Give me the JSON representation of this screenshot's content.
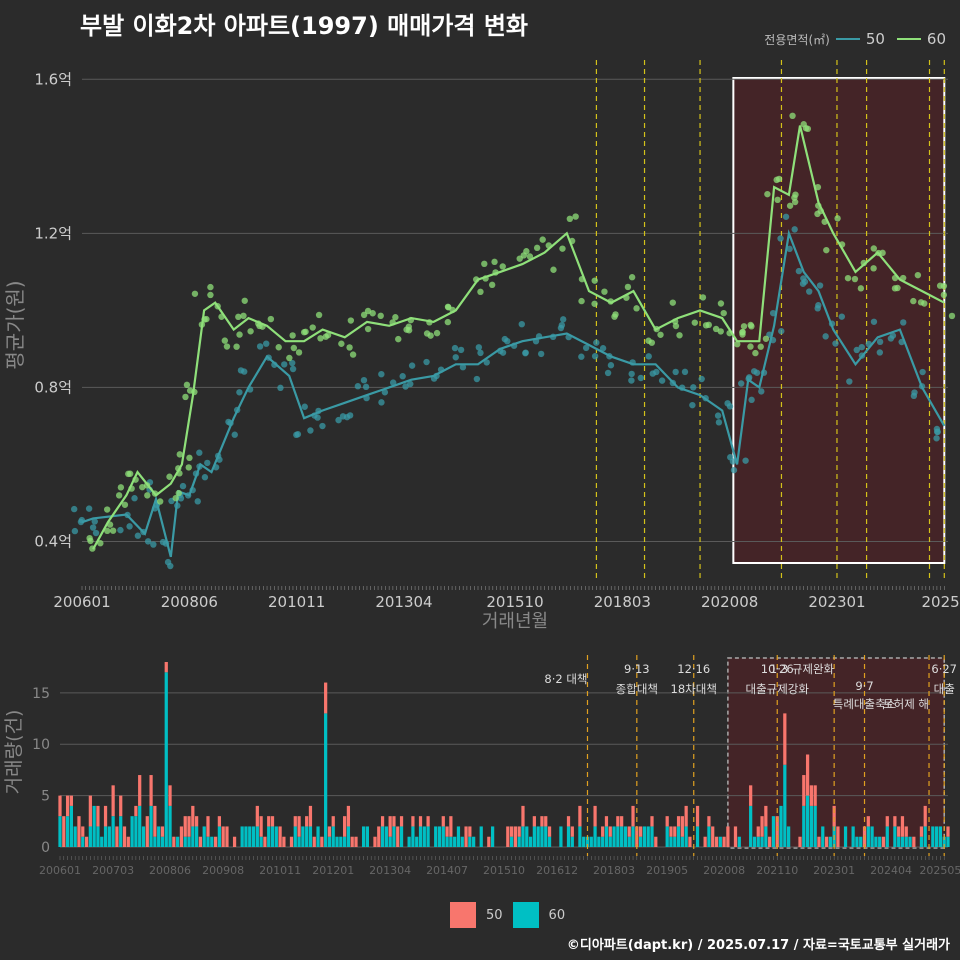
{
  "title": "부발 이화2차 아파트(1997) 매매가격 변화",
  "legend_top": {
    "title": "전용면적(㎡)",
    "items": [
      {
        "label": "50",
        "color": "#3a9aa5"
      },
      {
        "label": "60",
        "color": "#8fe07a"
      }
    ]
  },
  "legend_bottom": {
    "items": [
      {
        "label": "50",
        "color": "#f8766d"
      },
      {
        "label": "60",
        "color": "#00bfc4"
      }
    ]
  },
  "credit": "©디아파트(dapt.kr) / 2025.07.17 / 자료=국토교통부 실거래가",
  "chart_data": [
    {
      "type": "line",
      "name": "price",
      "xlabel": "거래년월",
      "ylabel": "평균가(원)",
      "x_ticks": [
        "200601",
        "200806",
        "201011",
        "201304",
        "201510",
        "201803",
        "202008",
        "202301",
        "2025"
      ],
      "y_ticks": [
        "0.4억",
        "0.8억",
        "1.2억",
        "1.6억"
      ],
      "ylim": [
        0.3,
        1.65
      ],
      "x_range": [
        "2006-01",
        "2025-07"
      ],
      "series": [
        {
          "name": "50",
          "color": "#3a9aa5",
          "points": [
            [
              "2006-01",
              0.45
            ],
            [
              "2006-04",
              0.46
            ],
            [
              "2007-01",
              0.47
            ],
            [
              "2007-06",
              0.42
            ],
            [
              "2007-09",
              0.51
            ],
            [
              "2008-01",
              0.36
            ],
            [
              "2008-03",
              0.53
            ],
            [
              "2008-06",
              0.52
            ],
            [
              "2008-09",
              0.6
            ],
            [
              "2008-12",
              0.58
            ],
            [
              "2009-06",
              0.72
            ],
            [
              "2009-10",
              0.8
            ],
            [
              "2010-03",
              0.88
            ],
            [
              "2010-09",
              0.83
            ],
            [
              "2011-01",
              0.72
            ],
            [
              "2011-06",
              0.74
            ],
            [
              "2011-12",
              0.76
            ],
            [
              "2012-06",
              0.78
            ],
            [
              "2012-12",
              0.8
            ],
            [
              "2013-06",
              0.82
            ],
            [
              "2013-12",
              0.83
            ],
            [
              "2014-06",
              0.86
            ],
            [
              "2014-12",
              0.86
            ],
            [
              "2015-06",
              0.9
            ],
            [
              "2015-12",
              0.92
            ],
            [
              "2016-06",
              0.93
            ],
            [
              "2016-12",
              0.94
            ],
            [
              "2017-06",
              0.91
            ],
            [
              "2017-12",
              0.88
            ],
            [
              "2018-06",
              0.86
            ],
            [
              "2018-12",
              0.86
            ],
            [
              "2019-06",
              0.8
            ],
            [
              "2019-12",
              0.78
            ],
            [
              "2020-06",
              0.74
            ],
            [
              "2020-10",
              0.6
            ],
            [
              "2021-01",
              0.82
            ],
            [
              "2021-04",
              0.8
            ],
            [
              "2021-08",
              0.96
            ],
            [
              "2021-12",
              1.2
            ],
            [
              "2022-04",
              1.1
            ],
            [
              "2022-08",
              1.05
            ],
            [
              "2022-12",
              0.95
            ],
            [
              "2023-06",
              0.86
            ],
            [
              "2023-12",
              0.93
            ],
            [
              "2024-06",
              0.95
            ],
            [
              "2024-12",
              0.8
            ],
            [
              "2025-06",
              0.7
            ]
          ]
        },
        {
          "name": "60",
          "color": "#8fe07a",
          "points": [
            [
              "2006-04",
              0.38
            ],
            [
              "2006-08",
              0.45
            ],
            [
              "2007-01",
              0.52
            ],
            [
              "2007-04",
              0.58
            ],
            [
              "2007-09",
              0.52
            ],
            [
              "2008-01",
              0.55
            ],
            [
              "2008-04",
              0.6
            ],
            [
              "2008-07",
              0.78
            ],
            [
              "2008-10",
              1.0
            ],
            [
              "2009-01",
              1.02
            ],
            [
              "2009-06",
              0.95
            ],
            [
              "2009-10",
              0.98
            ],
            [
              "2010-03",
              0.96
            ],
            [
              "2010-08",
              0.92
            ],
            [
              "2011-01",
              0.92
            ],
            [
              "2011-06",
              0.95
            ],
            [
              "2011-12",
              0.93
            ],
            [
              "2012-06",
              0.97
            ],
            [
              "2012-12",
              0.96
            ],
            [
              "2013-06",
              0.98
            ],
            [
              "2013-12",
              0.97
            ],
            [
              "2014-06",
              1.0
            ],
            [
              "2014-12",
              1.08
            ],
            [
              "2015-06",
              1.1
            ],
            [
              "2015-12",
              1.12
            ],
            [
              "2016-06",
              1.15
            ],
            [
              "2016-12",
              1.2
            ],
            [
              "2017-06",
              1.05
            ],
            [
              "2017-12",
              1.02
            ],
            [
              "2018-06",
              1.05
            ],
            [
              "2018-12",
              0.95
            ],
            [
              "2019-06",
              0.98
            ],
            [
              "2019-12",
              1.0
            ],
            [
              "2020-06",
              0.98
            ],
            [
              "2020-10",
              0.92
            ],
            [
              "2021-01",
              0.92
            ],
            [
              "2021-04",
              0.92
            ],
            [
              "2021-08",
              1.32
            ],
            [
              "2021-12",
              1.3
            ],
            [
              "2022-03",
              1.48
            ],
            [
              "2022-08",
              1.28
            ],
            [
              "2022-12",
              1.2
            ],
            [
              "2023-06",
              1.1
            ],
            [
              "2023-12",
              1.15
            ],
            [
              "2024-06",
              1.08
            ],
            [
              "2024-12",
              1.05
            ],
            [
              "2025-06",
              1.02
            ]
          ]
        }
      ]
    },
    {
      "type": "bar",
      "name": "volume",
      "ylabel": "거래량(건)",
      "ylim": [
        0,
        18
      ],
      "y_ticks": [
        "0",
        "5",
        "10",
        "15"
      ],
      "x_ticks": [
        "200601",
        "200703",
        "200806",
        "200908",
        "201011",
        "201201",
        "201304",
        "201407",
        "201510",
        "201612",
        "201803",
        "201905",
        "202008",
        "202110",
        "202301",
        "202404",
        "202505"
      ],
      "series": [
        {
          "name": "50",
          "color": "#f8766d"
        },
        {
          "name": "60",
          "color": "#00bfc4"
        }
      ],
      "peaks": [
        {
          "x": "2008-05",
          "50": 1,
          "60": 17
        },
        {
          "x": "2011-11",
          "50": 3,
          "60": 13
        },
        {
          "x": "2021-12",
          "50": 5,
          "60": 8
        },
        {
          "x": "2022-06",
          "50": 4,
          "60": 5
        }
      ]
    }
  ],
  "annotations": [
    {
      "date": "2017-08",
      "label": "8·2 대책"
    },
    {
      "date": "2018-09",
      "label": "9·13 종합대책"
    },
    {
      "date": "2019-12",
      "label": "12·16 18차대책"
    },
    {
      "date": "2021-10",
      "label": "10·26 대출규제강화"
    },
    {
      "date": "2023-01",
      "label": "1·3 규제완화"
    },
    {
      "date": "2023-09",
      "label": "9·7 특례대출축소"
    },
    {
      "date": "2025-02",
      "label": "토허제 해"
    },
    {
      "date": "2025-06",
      "label": "6·27 대출"
    }
  ]
}
